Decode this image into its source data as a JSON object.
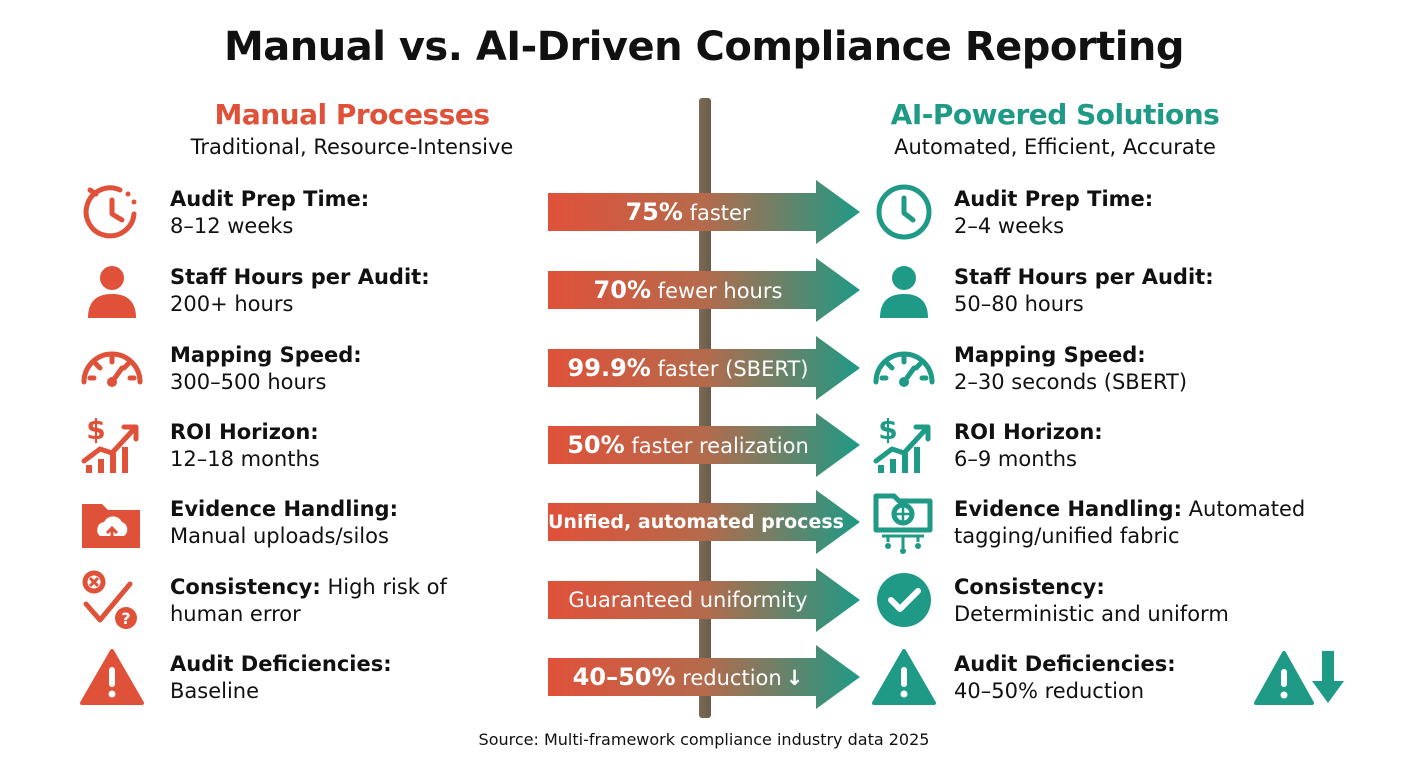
{
  "title": "Manual vs. AI-Driven Compliance Reporting",
  "left": {
    "heading": "Manual Processes",
    "subheading": "Traditional, Resource-Intensive"
  },
  "right": {
    "heading": "AI-Powered Solutions",
    "subheading": "Automated, Efficient, Accurate"
  },
  "colors": {
    "manual": "#e0513a",
    "ai": "#1e9a86",
    "divider": "#6e604c"
  },
  "rows": [
    {
      "label": "Audit Prep Time:",
      "manual": "8–12 weeks",
      "ai": "2–4 weeks",
      "arrow_bold": "75%",
      "arrow_text": " faster",
      "manual_icon": "timer-icon",
      "ai_icon": "clock-icon"
    },
    {
      "label": "Staff Hours per Audit:",
      "manual": "200+ hours",
      "ai": "50–80 hours",
      "arrow_bold": "70%",
      "arrow_text": " fewer hours",
      "manual_icon": "person-icon",
      "ai_icon": "person-icon"
    },
    {
      "label": "Mapping Speed:",
      "manual": "300–500 hours",
      "ai": "2–30 seconds (SBERT)",
      "arrow_bold": "99.9%",
      "arrow_text": " faster (SBERT)",
      "manual_icon": "speedometer-icon",
      "ai_icon": "speedometer-icon"
    },
    {
      "label": "ROI Horizon:",
      "manual": "12–18 months",
      "ai": "6–9 months",
      "arrow_bold": "50%",
      "arrow_text": " faster realization",
      "manual_icon": "dollar-growth-icon",
      "ai_icon": "dollar-growth-icon"
    },
    {
      "label": "Evidence Handling:",
      "manual": "Manual uploads/silos",
      "ai": "Automated tagging/unified fabric",
      "arrow_bold": "",
      "arrow_text": "Unified, automated process",
      "manual_icon": "folder-upload-icon",
      "ai_icon": "folder-network-icon"
    },
    {
      "label": "Consistency:",
      "manual": "High risk of human error",
      "ai": "Deterministic and uniform",
      "arrow_bold": "",
      "arrow_text": "Guaranteed uniformity",
      "manual_icon": "error-check-icon",
      "ai_icon": "check-circle-icon"
    },
    {
      "label": "Audit Deficiencies:",
      "manual": "Baseline",
      "ai": "40–50% reduction",
      "arrow_bold": "40–50%",
      "arrow_text": " reduction",
      "manual_icon": "warning-icon",
      "ai_icon": "warning-icon"
    }
  ],
  "source": "Source: Multi-framework compliance industry data 2025"
}
